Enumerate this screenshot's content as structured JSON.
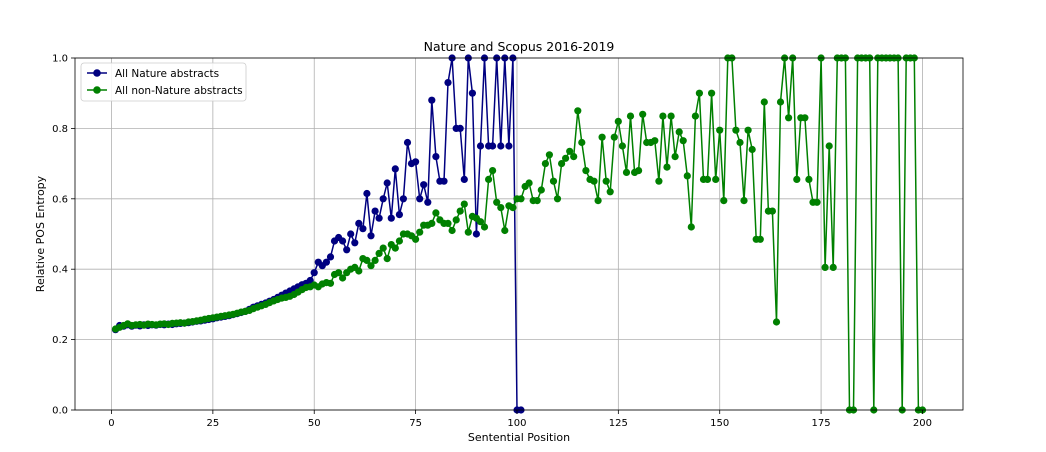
{
  "chart_data": {
    "type": "line",
    "title": "Nature and Scopus 2016-2019",
    "xlabel": "Sentential Position",
    "ylabel": "Relative POS Entropy",
    "xlim": [
      -9,
      210
    ],
    "ylim": [
      0,
      1.0
    ],
    "xticks": [
      0,
      25,
      50,
      75,
      100,
      125,
      150,
      175,
      200
    ],
    "yticks": [
      0.0,
      0.2,
      0.4,
      0.6,
      0.8,
      1.0
    ],
    "xtick_labels": [
      "0",
      "25",
      "50",
      "75",
      "100",
      "125",
      "150",
      "175",
      "200"
    ],
    "ytick_labels": [
      "0.0",
      "0.2",
      "0.4",
      "0.6",
      "0.8",
      "1.0"
    ],
    "grid": true,
    "legend_location": "upper left",
    "series": [
      {
        "name": "All Nature abstracts",
        "color": "#000080",
        "x": [
          1,
          2,
          3,
          4,
          5,
          6,
          7,
          8,
          9,
          10,
          11,
          12,
          13,
          14,
          15,
          16,
          17,
          18,
          19,
          20,
          21,
          22,
          23,
          24,
          25,
          26,
          27,
          28,
          29,
          30,
          31,
          32,
          33,
          34,
          35,
          36,
          37,
          38,
          39,
          40,
          41,
          42,
          43,
          44,
          45,
          46,
          47,
          48,
          49,
          50,
          51,
          52,
          53,
          54,
          55,
          56,
          57,
          58,
          59,
          60,
          61,
          62,
          63,
          64,
          65,
          66,
          67,
          68,
          69,
          70,
          71,
          72,
          73,
          74,
          75,
          76,
          77,
          78,
          79,
          80,
          81,
          82,
          83,
          84,
          85,
          86,
          87,
          88,
          89,
          90,
          91,
          92,
          93,
          94,
          95,
          96,
          97,
          98,
          99,
          100,
          101
        ],
        "y": [
          0.228,
          0.24,
          0.238,
          0.242,
          0.238,
          0.241,
          0.239,
          0.242,
          0.24,
          0.242,
          0.241,
          0.243,
          0.242,
          0.244,
          0.243,
          0.245,
          0.246,
          0.247,
          0.248,
          0.25,
          0.252,
          0.253,
          0.255,
          0.257,
          0.259,
          0.262,
          0.264,
          0.266,
          0.268,
          0.271,
          0.274,
          0.277,
          0.28,
          0.286,
          0.292,
          0.296,
          0.3,
          0.304,
          0.309,
          0.314,
          0.32,
          0.326,
          0.332,
          0.338,
          0.344,
          0.35,
          0.356,
          0.36,
          0.368,
          0.39,
          0.42,
          0.41,
          0.42,
          0.435,
          0.48,
          0.49,
          0.48,
          0.455,
          0.5,
          0.475,
          0.53,
          0.515,
          0.615,
          0.495,
          0.565,
          0.545,
          0.6,
          0.645,
          0.545,
          0.685,
          0.555,
          0.6,
          0.76,
          0.7,
          0.705,
          0.6,
          0.64,
          0.59,
          0.88,
          0.72,
          0.65,
          0.65,
          0.93,
          1.0,
          0.8,
          0.8,
          0.655,
          1.0,
          0.9,
          0.5,
          0.75,
          1.0,
          0.75,
          0.75,
          1.0,
          0.75,
          1.0,
          0.75,
          1.0,
          0.0,
          0.0
        ]
      },
      {
        "name": "All non-Nature abstracts",
        "color": "#008000",
        "x": [
          1,
          2,
          3,
          4,
          5,
          6,
          7,
          8,
          9,
          10,
          11,
          12,
          13,
          14,
          15,
          16,
          17,
          18,
          19,
          20,
          21,
          22,
          23,
          24,
          25,
          26,
          27,
          28,
          29,
          30,
          31,
          32,
          33,
          34,
          35,
          36,
          37,
          38,
          39,
          40,
          41,
          42,
          43,
          44,
          45,
          46,
          47,
          48,
          49,
          50,
          51,
          52,
          53,
          54,
          55,
          56,
          57,
          58,
          59,
          60,
          61,
          62,
          63,
          64,
          65,
          66,
          67,
          68,
          69,
          70,
          71,
          72,
          73,
          74,
          75,
          76,
          77,
          78,
          79,
          80,
          81,
          82,
          83,
          84,
          85,
          86,
          87,
          88,
          89,
          90,
          91,
          92,
          93,
          94,
          95,
          96,
          97,
          98,
          99,
          100,
          101,
          102,
          103,
          104,
          105,
          106,
          107,
          108,
          109,
          110,
          111,
          112,
          113,
          114,
          115,
          116,
          117,
          118,
          119,
          120,
          121,
          122,
          123,
          124,
          125,
          126,
          127,
          128,
          129,
          130,
          131,
          132,
          133,
          134,
          135,
          136,
          137,
          138,
          139,
          140,
          141,
          142,
          143,
          144,
          145,
          146,
          147,
          148,
          149,
          150,
          151,
          152,
          153,
          154,
          155,
          156,
          157,
          158,
          159,
          160,
          161,
          162,
          163,
          164,
          165,
          166,
          167,
          168,
          169,
          170,
          171,
          172,
          173,
          174,
          175,
          176,
          177,
          178,
          179,
          180,
          181,
          182,
          183,
          184,
          185,
          186,
          187,
          188,
          189,
          190,
          191,
          192,
          193,
          194,
          195,
          196,
          197,
          198,
          199,
          200
        ],
        "y": [
          0.23,
          0.235,
          0.24,
          0.245,
          0.24,
          0.242,
          0.243,
          0.241,
          0.244,
          0.243,
          0.242,
          0.244,
          0.245,
          0.243,
          0.246,
          0.247,
          0.248,
          0.247,
          0.25,
          0.251,
          0.253,
          0.255,
          0.258,
          0.26,
          0.262,
          0.264,
          0.266,
          0.268,
          0.27,
          0.272,
          0.275,
          0.278,
          0.28,
          0.283,
          0.288,
          0.292,
          0.296,
          0.3,
          0.305,
          0.31,
          0.314,
          0.318,
          0.32,
          0.323,
          0.328,
          0.335,
          0.342,
          0.348,
          0.35,
          0.355,
          0.35,
          0.358,
          0.362,
          0.36,
          0.385,
          0.39,
          0.375,
          0.39,
          0.4,
          0.405,
          0.395,
          0.43,
          0.425,
          0.41,
          0.425,
          0.445,
          0.46,
          0.43,
          0.47,
          0.46,
          0.48,
          0.5,
          0.5,
          0.495,
          0.485,
          0.505,
          0.525,
          0.525,
          0.53,
          0.56,
          0.54,
          0.53,
          0.53,
          0.51,
          0.54,
          0.565,
          0.585,
          0.505,
          0.55,
          0.545,
          0.535,
          0.52,
          0.655,
          0.68,
          0.59,
          0.575,
          0.51,
          0.58,
          0.575,
          0.6,
          0.6,
          0.635,
          0.645,
          0.595,
          0.595,
          0.625,
          0.7,
          0.725,
          0.65,
          0.6,
          0.7,
          0.715,
          0.735,
          0.72,
          0.85,
          0.76,
          0.68,
          0.655,
          0.65,
          0.595,
          0.775,
          0.65,
          0.62,
          0.775,
          0.82,
          0.75,
          0.675,
          0.835,
          0.675,
          0.68,
          0.84,
          0.76,
          0.76,
          0.765,
          0.65,
          0.835,
          0.69,
          0.835,
          0.72,
          0.79,
          0.765,
          0.665,
          0.52,
          0.835,
          0.9,
          0.655,
          0.655,
          0.9,
          0.655,
          0.795,
          0.595,
          1.0,
          1.0,
          0.795,
          0.76,
          0.595,
          0.795,
          0.74,
          0.485,
          0.485,
          0.875,
          0.565,
          0.565,
          0.25,
          0.875,
          1.0,
          0.83,
          1.0,
          0.655,
          0.83,
          0.83,
          0.655,
          0.59,
          0.59,
          1.0,
          0.405,
          0.75,
          0.405,
          1.0,
          1.0,
          1.0,
          0.0,
          0.0,
          1.0,
          1.0,
          1.0,
          1.0,
          0.0,
          1.0,
          1.0,
          1.0,
          1.0,
          1.0,
          1.0,
          0.0,
          1.0,
          1.0,
          1.0,
          0.0,
          0.0
        ]
      }
    ]
  }
}
